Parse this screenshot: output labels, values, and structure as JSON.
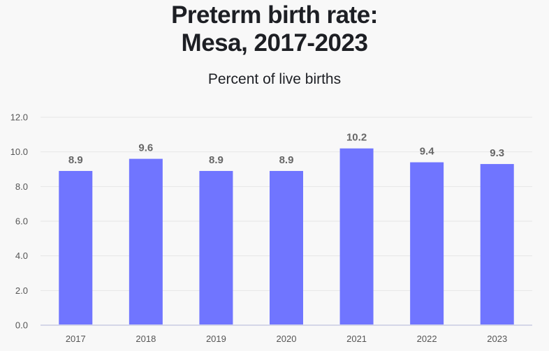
{
  "chart_data": {
    "type": "bar",
    "title_line1": "Preterm birth rate:",
    "title_line2": "Mesa, 2017-2023",
    "subtitle": "Percent of live births",
    "categories": [
      "2017",
      "2018",
      "2019",
      "2020",
      "2021",
      "2022",
      "2023"
    ],
    "values": [
      8.9,
      9.6,
      8.9,
      8.9,
      10.2,
      9.4,
      9.3
    ],
    "data_labels": [
      "8.9",
      "9.6",
      "8.9",
      "8.9",
      "10.2",
      "9.4",
      "9.3"
    ],
    "ylim": [
      0,
      12
    ],
    "yticks": [
      "0.0",
      "2.0",
      "4.0",
      "6.0",
      "8.0",
      "10.0",
      "12.0"
    ],
    "grid": true,
    "bar_color": "#7075ff"
  }
}
